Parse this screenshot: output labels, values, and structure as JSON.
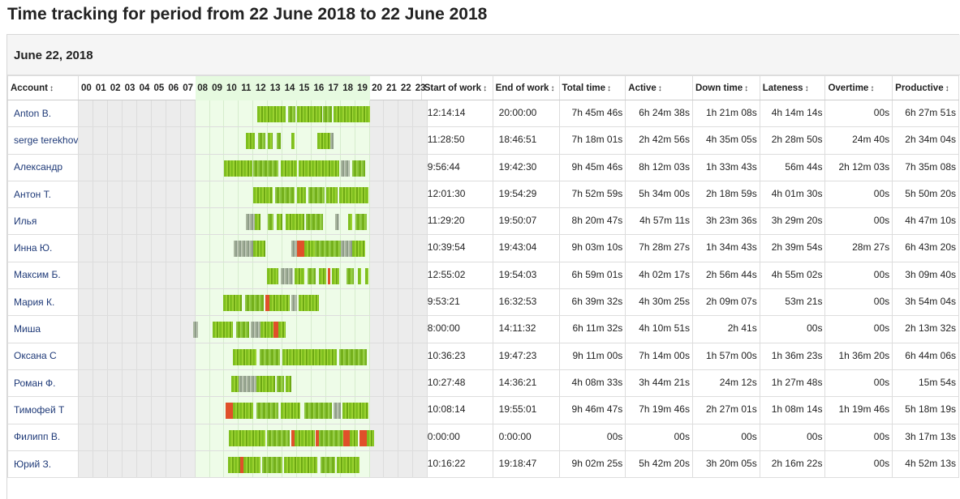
{
  "title": "Time tracking for period from 22 June 2018 to 22 June 2018",
  "date_header": "June 22, 2018",
  "columns": {
    "account": "Account",
    "start": "Start of work",
    "end": "End of work",
    "total": "Total time",
    "active": "Active",
    "down": "Down time",
    "lateness": "Lateness",
    "overtime": "Overtime",
    "productive": "Productive"
  },
  "sort_icon": "↕",
  "hours": [
    "00",
    "01",
    "02",
    "03",
    "04",
    "05",
    "06",
    "07",
    "08",
    "09",
    "10",
    "11",
    "12",
    "13",
    "14",
    "15",
    "16",
    "17",
    "18",
    "19",
    "20",
    "21",
    "22",
    "23"
  ],
  "work_hours_range": [
    8,
    19
  ],
  "rows": [
    {
      "account": "Anton B.",
      "start": "12:14:14",
      "end": "20:00:00",
      "total": "7h 45m 46s",
      "active": "6h 24m 38s",
      "down": "1h 21m 08s",
      "lateness": "4h 14m 14s",
      "overtime": "00s",
      "productive": "6h 27m 51s",
      "segments": [
        [
          12.25,
          14.2,
          "g1"
        ],
        [
          14.4,
          14.9,
          "g2"
        ],
        [
          15.0,
          16.7,
          "g1"
        ],
        [
          16.8,
          17.4,
          "g2"
        ],
        [
          17.5,
          20.0,
          "g1"
        ]
      ]
    },
    {
      "account": "serge terekhov",
      "start": "11:28:50",
      "end": "18:46:51",
      "total": "7h 18m 01s",
      "active": "2h 42m 56s",
      "down": "4h 35m 05s",
      "lateness": "2h 28m 50s",
      "overtime": "24m 40s",
      "productive": "2h 34m 04s",
      "segments": [
        [
          11.48,
          12.1,
          "g1"
        ],
        [
          12.3,
          12.8,
          "g2"
        ],
        [
          13.0,
          13.3,
          "g1"
        ],
        [
          13.6,
          13.9,
          "g2"
        ],
        [
          14.6,
          14.8,
          "g1"
        ],
        [
          16.4,
          17.3,
          "g1"
        ],
        [
          17.3,
          17.5,
          "gray"
        ]
      ]
    },
    {
      "account": "Александр",
      "start": "9:56:44",
      "end": "19:42:30",
      "total": "9h 45m 46s",
      "active": "8h 12m 03s",
      "down": "1h 33m 43s",
      "lateness": "56m 44s",
      "overtime": "2h 12m 03s",
      "productive": "7h 35m 08s",
      "segments": [
        [
          9.95,
          11.9,
          "g1"
        ],
        [
          12.0,
          13.7,
          "g2"
        ],
        [
          13.9,
          15.0,
          "g1"
        ],
        [
          15.1,
          17.9,
          "g1"
        ],
        [
          18.0,
          18.6,
          "gray"
        ],
        [
          18.8,
          19.7,
          "g2"
        ]
      ]
    },
    {
      "account": "Антон Т.",
      "start": "12:01:30",
      "end": "19:54:29",
      "total": "7h 52m 59s",
      "active": "5h 34m 00s",
      "down": "2h 18m 59s",
      "lateness": "4h 01m 30s",
      "overtime": "00s",
      "productive": "5h 50m 20s",
      "segments": [
        [
          12.0,
          13.3,
          "g1"
        ],
        [
          13.5,
          14.8,
          "g2"
        ],
        [
          15.0,
          15.6,
          "g1"
        ],
        [
          15.8,
          16.9,
          "g2"
        ],
        [
          17.0,
          17.8,
          "g1"
        ],
        [
          17.9,
          19.9,
          "g1"
        ]
      ]
    },
    {
      "account": "Илья",
      "start": "11:29:20",
      "end": "19:50:07",
      "total": "8h 20m 47s",
      "active": "4h 57m 11s",
      "down": "3h 23m 36s",
      "lateness": "3h 29m 20s",
      "overtime": "00s",
      "productive": "4h 47m 10s",
      "segments": [
        [
          11.5,
          12.1,
          "gray"
        ],
        [
          12.1,
          12.5,
          "g1"
        ],
        [
          13.0,
          13.4,
          "g2"
        ],
        [
          13.6,
          14.0,
          "g1"
        ],
        [
          14.2,
          15.5,
          "g1"
        ],
        [
          15.6,
          16.8,
          "g2"
        ],
        [
          17.6,
          17.9,
          "gray"
        ],
        [
          18.5,
          18.8,
          "g1"
        ],
        [
          19.0,
          19.8,
          "g2"
        ]
      ]
    },
    {
      "account": "Инна Ю.",
      "start": "10:39:54",
      "end": "19:43:04",
      "total": "9h 03m 10s",
      "active": "7h 28m 27s",
      "down": "1h 34m 43s",
      "lateness": "2h 39m 54s",
      "overtime": "28m 27s",
      "productive": "6h 43m 20s",
      "segments": [
        [
          10.65,
          12.0,
          "gray"
        ],
        [
          12.0,
          12.8,
          "g1"
        ],
        [
          14.6,
          15.0,
          "gray"
        ],
        [
          15.0,
          15.5,
          "red"
        ],
        [
          15.5,
          16.2,
          "g1"
        ],
        [
          16.2,
          18.0,
          "g2"
        ],
        [
          18.0,
          18.8,
          "gray"
        ],
        [
          18.8,
          19.7,
          "g1"
        ]
      ]
    },
    {
      "account": "Максим Б.",
      "start": "12:55:02",
      "end": "19:54:03",
      "total": "6h 59m 01s",
      "active": "4h 02m 17s",
      "down": "2h 56m 44s",
      "lateness": "4h 55m 02s",
      "overtime": "00s",
      "productive": "3h 09m 40s",
      "segments": [
        [
          12.9,
          13.7,
          "g1"
        ],
        [
          13.9,
          14.7,
          "gray"
        ],
        [
          14.8,
          15.5,
          "g1"
        ],
        [
          15.7,
          16.3,
          "g2"
        ],
        [
          16.5,
          17.0,
          "g1"
        ],
        [
          17.1,
          17.3,
          "red"
        ],
        [
          17.4,
          17.9,
          "g1"
        ],
        [
          18.4,
          18.9,
          "g2"
        ],
        [
          19.2,
          19.4,
          "g1"
        ],
        [
          19.7,
          19.9,
          "g1"
        ]
      ]
    },
    {
      "account": "Мария К.",
      "start": "9:53:21",
      "end": "16:32:53",
      "total": "6h 39m 32s",
      "active": "4h 30m 25s",
      "down": "2h 09m 07s",
      "lateness": "53m 21s",
      "overtime": "00s",
      "productive": "3h 54m 04s",
      "segments": [
        [
          9.9,
          11.2,
          "g1"
        ],
        [
          11.4,
          12.7,
          "g2"
        ],
        [
          12.8,
          13.1,
          "red"
        ],
        [
          13.1,
          14.5,
          "g1"
        ],
        [
          14.6,
          15.0,
          "gray"
        ],
        [
          15.1,
          16.5,
          "g1"
        ]
      ]
    },
    {
      "account": "Миша",
      "start": "8:00:00",
      "end": "14:11:32",
      "total": "6h 11m 32s",
      "active": "4h 10m 51s",
      "down": "2h  41s",
      "lateness": "00s",
      "overtime": "00s",
      "productive": "2h 13m 32s",
      "segments": [
        [
          7.85,
          8.2,
          "gray"
        ],
        [
          9.2,
          10.6,
          "g1"
        ],
        [
          10.8,
          11.7,
          "g2"
        ],
        [
          11.8,
          12.5,
          "gray"
        ],
        [
          12.5,
          13.4,
          "g1"
        ],
        [
          13.4,
          13.7,
          "red"
        ],
        [
          13.7,
          14.2,
          "g1"
        ]
      ]
    },
    {
      "account": "Оксана С",
      "start": "10:36:23",
      "end": "19:47:23",
      "total": "9h 11m 00s",
      "active": "7h 14m 00s",
      "down": "1h 57m 00s",
      "lateness": "1h 36m 23s",
      "overtime": "1h 36m 20s",
      "productive": "6h 44m 06s",
      "segments": [
        [
          10.6,
          12.2,
          "g1"
        ],
        [
          12.4,
          13.8,
          "g2"
        ],
        [
          14.0,
          17.7,
          "g1"
        ],
        [
          17.9,
          19.8,
          "g2"
        ]
      ]
    },
    {
      "account": "Роман Ф.",
      "start": "10:27:48",
      "end": "14:36:21",
      "total": "4h 08m 33s",
      "active": "3h 44m 21s",
      "down": "24m 12s",
      "lateness": "1h 27m 48s",
      "overtime": "00s",
      "productive": "15m 54s",
      "segments": [
        [
          10.45,
          11.0,
          "g1"
        ],
        [
          11.0,
          12.2,
          "gray"
        ],
        [
          12.2,
          13.5,
          "g1"
        ],
        [
          13.6,
          14.1,
          "g2"
        ],
        [
          14.2,
          14.6,
          "g1"
        ]
      ]
    },
    {
      "account": "Тимофей Т",
      "start": "10:08:14",
      "end": "19:55:01",
      "total": "9h 46m 47s",
      "active": "7h 19m 46s",
      "down": "2h 27m 01s",
      "lateness": "1h 08m 14s",
      "overtime": "1h 19m 46s",
      "productive": "5h 18m 19s",
      "segments": [
        [
          10.1,
          10.6,
          "red"
        ],
        [
          10.6,
          12.0,
          "g1"
        ],
        [
          12.2,
          13.7,
          "g2"
        ],
        [
          13.9,
          15.2,
          "g1"
        ],
        [
          15.5,
          17.4,
          "g2"
        ],
        [
          17.5,
          18.0,
          "gray"
        ],
        [
          18.1,
          19.9,
          "g1"
        ]
      ]
    },
    {
      "account": "Филипп В.",
      "start": "0:00:00",
      "end": "0:00:00",
      "total": "00s",
      "active": "00s",
      "down": "00s",
      "lateness": "00s",
      "overtime": "00s",
      "productive": "3h 17m 13s",
      "segments": [
        [
          10.3,
          12.8,
          "g1"
        ],
        [
          12.9,
          14.5,
          "g2"
        ],
        [
          14.6,
          14.8,
          "red"
        ],
        [
          14.8,
          16.2,
          "g1"
        ],
        [
          16.3,
          16.5,
          "red"
        ],
        [
          16.5,
          18.2,
          "g2"
        ],
        [
          18.2,
          18.6,
          "red"
        ],
        [
          18.6,
          19.2,
          "g1"
        ],
        [
          19.3,
          19.8,
          "red"
        ],
        [
          19.8,
          20.3,
          "g1"
        ]
      ]
    },
    {
      "account": "Юрий З.",
      "start": "10:16:22",
      "end": "19:18:47",
      "total": "9h 02m 25s",
      "active": "5h 42m 20s",
      "down": "3h 20m 05s",
      "lateness": "2h 16m 22s",
      "overtime": "00s",
      "productive": "4h 52m 13s",
      "segments": [
        [
          10.25,
          11.1,
          "g1"
        ],
        [
          11.1,
          11.3,
          "red"
        ],
        [
          11.3,
          12.5,
          "g1"
        ],
        [
          12.6,
          14.0,
          "g2"
        ],
        [
          14.1,
          16.4,
          "g1"
        ],
        [
          16.6,
          17.6,
          "g2"
        ],
        [
          17.7,
          19.3,
          "g1"
        ]
      ]
    }
  ]
}
